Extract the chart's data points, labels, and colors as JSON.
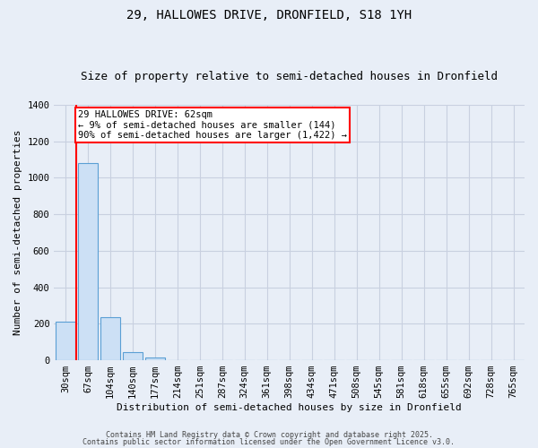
{
  "title_line1": "29, HALLOWES DRIVE, DRONFIELD, S18 1YH",
  "title_line2": "Size of property relative to semi-detached houses in Dronfield",
  "xlabel": "Distribution of semi-detached houses by size in Dronfield",
  "ylabel": "Number of semi-detached properties",
  "categories": [
    "30sqm",
    "67sqm",
    "104sqm",
    "140sqm",
    "177sqm",
    "214sqm",
    "251sqm",
    "287sqm",
    "324sqm",
    "361sqm",
    "398sqm",
    "434sqm",
    "471sqm",
    "508sqm",
    "545sqm",
    "581sqm",
    "618sqm",
    "655sqm",
    "692sqm",
    "728sqm",
    "765sqm"
  ],
  "values": [
    210,
    1080,
    235,
    45,
    15,
    0,
    0,
    0,
    0,
    0,
    0,
    0,
    0,
    0,
    0,
    0,
    0,
    0,
    0,
    0,
    0
  ],
  "bar_color": "#cce0f5",
  "bar_edge_color": "#5a9fd4",
  "background_color": "#e8eef7",
  "grid_color": "#c8d0e0",
  "annotation_text": "29 HALLOWES DRIVE: 62sqm\n← 9% of semi-detached houses are smaller (144)\n90% of semi-detached houses are larger (1,422) →",
  "ylim": [
    0,
    1400
  ],
  "yticks": [
    0,
    200,
    400,
    600,
    800,
    1000,
    1200,
    1400
  ],
  "footer_line1": "Contains HM Land Registry data © Crown copyright and database right 2025.",
  "footer_line2": "Contains public sector information licensed under the Open Government Licence v3.0.",
  "title_fontsize": 10,
  "subtitle_fontsize": 9,
  "axis_label_fontsize": 8,
  "tick_fontsize": 7.5,
  "annotation_fontsize": 7.5,
  "footer_fontsize": 6
}
